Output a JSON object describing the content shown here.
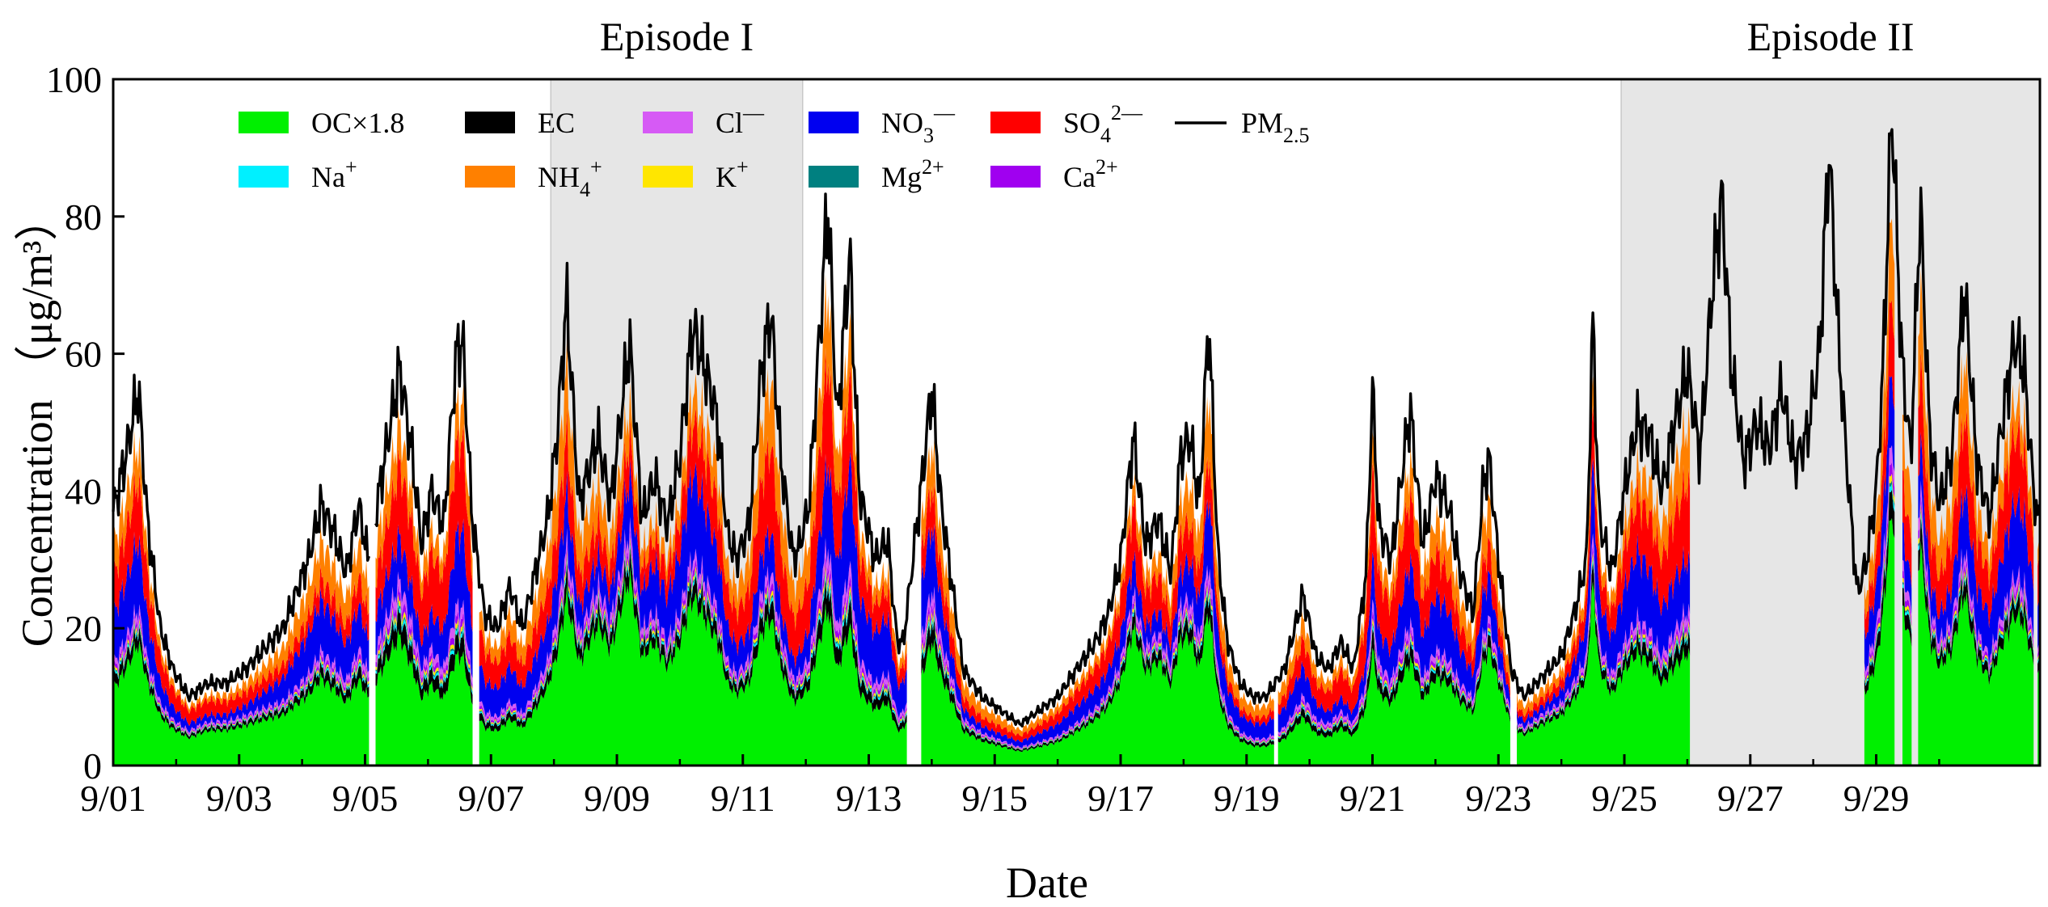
{
  "chart_data": {
    "type": "area",
    "title": "",
    "xlabel": "Date",
    "ylabel": "Concentration （μg/m³）",
    "ylim": [
      0,
      100
    ],
    "yticks": [
      0,
      20,
      40,
      60,
      80,
      100
    ],
    "xlim_days": [
      0,
      30.6
    ],
    "x_ticks": [
      {
        "label": "9/01",
        "day": 0
      },
      {
        "label": "9/03",
        "day": 2
      },
      {
        "label": "9/05",
        "day": 4
      },
      {
        "label": "9/07",
        "day": 6
      },
      {
        "label": "9/09",
        "day": 8
      },
      {
        "label": "9/11",
        "day": 10
      },
      {
        "label": "9/13",
        "day": 12
      },
      {
        "label": "9/15",
        "day": 14
      },
      {
        "label": "9/17",
        "day": 16
      },
      {
        "label": "9/19",
        "day": 18
      },
      {
        "label": "9/21",
        "day": 20
      },
      {
        "label": "9/23",
        "day": 22
      },
      {
        "label": "9/25",
        "day": 24
      },
      {
        "label": "9/27",
        "day": 26
      },
      {
        "label": "9/29",
        "day": 28
      }
    ],
    "episodes": [
      {
        "label": "Episode I",
        "start_day": 6.95,
        "end_day": 10.95
      },
      {
        "label": "Episode II",
        "start_day": 23.95,
        "end_day": 30.6
      }
    ],
    "legend": {
      "row1": [
        {
          "key": "OC",
          "label": "OC×1.8",
          "color": "#00f000",
          "kind": "fill"
        },
        {
          "key": "EC",
          "label": "EC",
          "color": "#000000",
          "kind": "fill"
        },
        {
          "key": "Cl",
          "label": "Cl",
          "sup": "—",
          "color": "#d65af5",
          "kind": "fill"
        },
        {
          "key": "NO3",
          "label": "NO",
          "sub": "3",
          "sup": "—",
          "color": "#0000f0",
          "kind": "fill"
        },
        {
          "key": "SO4",
          "label": "SO",
          "sub": "4",
          "sup": "2—",
          "color": "#ff0000",
          "kind": "fill"
        },
        {
          "key": "PM",
          "label": "PM",
          "sub": "2.5",
          "color": "#000000",
          "kind": "line"
        }
      ],
      "row2": [
        {
          "key": "Na",
          "label": "Na",
          "sup": "+",
          "color": "#00f0ff",
          "kind": "fill"
        },
        {
          "key": "NH4",
          "label": "NH",
          "sub": "4",
          "sup": "+",
          "color": "#ff8000",
          "kind": "fill"
        },
        {
          "key": "K",
          "label": "K",
          "sup": "+",
          "color": "#ffe600",
          "kind": "fill"
        },
        {
          "key": "Mg",
          "label": "Mg",
          "sup": "2+",
          "color": "#008080",
          "kind": "fill"
        },
        {
          "key": "Ca",
          "label": "Ca",
          "sup": "2+",
          "color": "#a000f0",
          "kind": "fill"
        }
      ]
    },
    "stack_order": [
      "OC",
      "EC",
      "Na",
      "Mg",
      "K",
      "Ca",
      "Cl",
      "NO3",
      "SO4",
      "NH4"
    ],
    "pm25_anchors": [
      [
        0.0,
        37
      ],
      [
        0.2,
        45
      ],
      [
        0.4,
        55
      ],
      [
        0.55,
        35
      ],
      [
        0.75,
        20
      ],
      [
        0.95,
        14
      ],
      [
        1.2,
        10
      ],
      [
        1.5,
        12
      ],
      [
        1.8,
        12
      ],
      [
        2.1,
        14
      ],
      [
        2.4,
        17
      ],
      [
        2.7,
        20
      ],
      [
        2.9,
        25
      ],
      [
        3.1,
        30
      ],
      [
        3.3,
        38
      ],
      [
        3.5,
        34
      ],
      [
        3.7,
        28
      ],
      [
        3.9,
        38
      ],
      [
        4.05,
        30
      ],
      [
        4.3,
        44
      ],
      [
        4.55,
        58
      ],
      [
        4.75,
        45
      ],
      [
        4.9,
        32
      ],
      [
        5.05,
        40
      ],
      [
        5.25,
        35
      ],
      [
        5.45,
        60
      ],
      [
        5.55,
        62
      ],
      [
        5.7,
        36
      ],
      [
        5.9,
        22
      ],
      [
        6.1,
        20
      ],
      [
        6.3,
        26
      ],
      [
        6.5,
        20
      ],
      [
        6.7,
        28
      ],
      [
        6.9,
        36
      ],
      [
        7.05,
        48
      ],
      [
        7.2,
        68
      ],
      [
        7.4,
        38
      ],
      [
        7.7,
        48
      ],
      [
        7.9,
        38
      ],
      [
        8.2,
        62
      ],
      [
        8.4,
        36
      ],
      [
        8.6,
        42
      ],
      [
        8.8,
        35
      ],
      [
        9.0,
        45
      ],
      [
        9.2,
        64
      ],
      [
        9.4,
        58
      ],
      [
        9.6,
        50
      ],
      [
        9.75,
        34
      ],
      [
        9.9,
        30
      ],
      [
        10.1,
        35
      ],
      [
        10.3,
        58
      ],
      [
        10.45,
        66
      ],
      [
        10.6,
        45
      ],
      [
        10.8,
        30
      ],
      [
        10.9,
        32
      ],
      [
        11.05,
        38
      ],
      [
        11.2,
        60
      ],
      [
        11.35,
        82
      ],
      [
        11.5,
        50
      ],
      [
        11.7,
        75
      ],
      [
        11.85,
        40
      ],
      [
        12.1,
        30
      ],
      [
        12.3,
        33
      ],
      [
        12.45,
        18
      ],
      [
        12.55,
        18
      ],
      [
        12.7,
        30
      ],
      [
        12.85,
        42
      ],
      [
        13.0,
        55
      ],
      [
        13.15,
        38
      ],
      [
        13.3,
        28
      ],
      [
        13.5,
        14
      ],
      [
        13.8,
        10
      ],
      [
        14.1,
        8
      ],
      [
        14.4,
        6
      ],
      [
        14.7,
        8
      ],
      [
        15.0,
        10
      ],
      [
        15.3,
        14
      ],
      [
        15.6,
        18
      ],
      [
        15.8,
        22
      ],
      [
        16.0,
        30
      ],
      [
        16.2,
        48
      ],
      [
        16.4,
        32
      ],
      [
        16.6,
        36
      ],
      [
        16.8,
        28
      ],
      [
        16.95,
        45
      ],
      [
        17.1,
        48
      ],
      [
        17.25,
        38
      ],
      [
        17.4,
        65
      ],
      [
        17.55,
        30
      ],
      [
        17.7,
        18
      ],
      [
        17.9,
        12
      ],
      [
        18.1,
        10
      ],
      [
        18.3,
        10
      ],
      [
        18.6,
        14
      ],
      [
        18.9,
        25
      ],
      [
        19.1,
        16
      ],
      [
        19.3,
        14
      ],
      [
        19.5,
        18
      ],
      [
        19.7,
        14
      ],
      [
        19.9,
        28
      ],
      [
        20.0,
        55
      ],
      [
        20.1,
        35
      ],
      [
        20.3,
        30
      ],
      [
        20.5,
        45
      ],
      [
        20.6,
        52
      ],
      [
        20.8,
        32
      ],
      [
        21.0,
        42
      ],
      [
        21.2,
        38
      ],
      [
        21.4,
        28
      ],
      [
        21.6,
        22
      ],
      [
        21.75,
        40
      ],
      [
        21.85,
        45
      ],
      [
        22.0,
        30
      ],
      [
        22.2,
        14
      ],
      [
        22.4,
        10
      ],
      [
        22.6,
        12
      ],
      [
        22.8,
        14
      ],
      [
        23.0,
        16
      ],
      [
        23.2,
        22
      ],
      [
        23.4,
        30
      ],
      [
        23.5,
        65
      ],
      [
        23.6,
        36
      ],
      [
        23.8,
        28
      ],
      [
        24.0,
        40
      ],
      [
        24.2,
        50
      ],
      [
        24.4,
        48
      ],
      [
        24.6,
        40
      ],
      [
        24.8,
        50
      ],
      [
        25.0,
        58
      ],
      [
        25.2,
        45
      ],
      [
        25.4,
        70
      ],
      [
        25.55,
        83
      ],
      [
        25.7,
        58
      ],
      [
        25.9,
        44
      ],
      [
        26.1,
        50
      ],
      [
        26.3,
        46
      ],
      [
        26.5,
        55
      ],
      [
        26.7,
        44
      ],
      [
        26.9,
        48
      ],
      [
        27.1,
        60
      ],
      [
        27.25,
        90
      ],
      [
        27.4,
        62
      ],
      [
        27.55,
        42
      ],
      [
        27.7,
        25
      ],
      [
        27.85,
        30
      ],
      [
        28.0,
        40
      ],
      [
        28.1,
        56
      ],
      [
        28.25,
        96
      ],
      [
        28.4,
        60
      ],
      [
        28.55,
        45
      ],
      [
        28.7,
        82
      ],
      [
        28.85,
        48
      ],
      [
        29.0,
        38
      ],
      [
        29.2,
        45
      ],
      [
        29.4,
        70
      ],
      [
        29.6,
        44
      ],
      [
        29.8,
        36
      ],
      [
        30.0,
        50
      ],
      [
        30.2,
        62
      ],
      [
        30.35,
        58
      ],
      [
        30.5,
        40
      ],
      [
        30.6,
        34
      ]
    ],
    "pm25_gaps": [
      [
        4.07,
        4.15
      ]
    ],
    "speciation_gaps": [
      [
        4.07,
        4.15
      ],
      [
        5.72,
        5.8
      ],
      [
        12.62,
        12.82
      ],
      [
        18.44,
        18.5
      ],
      [
        22.2,
        22.28
      ],
      [
        25.06,
        27.8
      ],
      [
        28.3,
        28.4
      ],
      [
        28.58,
        28.65
      ],
      [
        30.5,
        30.56
      ]
    ],
    "fractions": {
      "OC": 0.4,
      "EC": 0.05,
      "Na": 0.01,
      "Mg": 0.006,
      "K": 0.012,
      "Ca": 0.02,
      "Cl": 0.03,
      "NO3": 0.17,
      "SO4": 0.17,
      "NH4": 0.13
    }
  }
}
